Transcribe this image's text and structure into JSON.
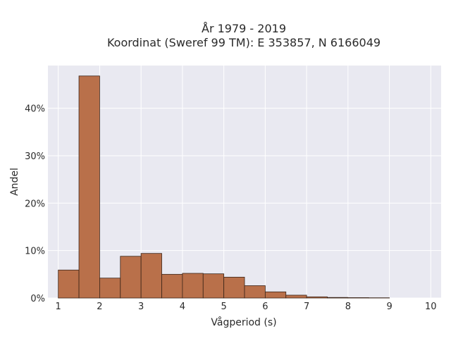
{
  "chart_data": {
    "type": "bar",
    "title_line1": "År 1979 - 2019",
    "title_line2": "Koordinat (Sweref 99 TM): E 353857, N 6166049",
    "xlabel": "Vågperiod (s)",
    "ylabel": "Andel",
    "x_ticks": [
      "1",
      "2",
      "3",
      "4",
      "5",
      "6",
      "7",
      "8",
      "9",
      "10"
    ],
    "y_ticks": [
      "0%",
      "10%",
      "20%",
      "30%",
      "40%"
    ],
    "xlim": [
      0.75,
      10.25
    ],
    "ylim": [
      0,
      49
    ],
    "grid": true,
    "bin_width": 0.5,
    "bins": [
      {
        "x0": 1.0,
        "x1": 1.5,
        "value": 5.9
      },
      {
        "x0": 1.5,
        "x1": 2.0,
        "value": 46.8
      },
      {
        "x0": 2.0,
        "x1": 2.5,
        "value": 4.2
      },
      {
        "x0": 2.5,
        "x1": 3.0,
        "value": 8.8
      },
      {
        "x0": 3.0,
        "x1": 3.5,
        "value": 9.4
      },
      {
        "x0": 3.5,
        "x1": 4.0,
        "value": 5.0
      },
      {
        "x0": 4.0,
        "x1": 4.5,
        "value": 5.2
      },
      {
        "x0": 4.5,
        "x1": 5.0,
        "value": 5.1
      },
      {
        "x0": 5.0,
        "x1": 5.5,
        "value": 4.4
      },
      {
        "x0": 5.5,
        "x1": 6.0,
        "value": 2.6
      },
      {
        "x0": 6.0,
        "x1": 6.5,
        "value": 1.3
      },
      {
        "x0": 6.5,
        "x1": 7.0,
        "value": 0.6
      },
      {
        "x0": 7.0,
        "x1": 7.5,
        "value": 0.25
      },
      {
        "x0": 7.5,
        "x1": 8.0,
        "value": 0.12
      },
      {
        "x0": 8.0,
        "x1": 8.5,
        "value": 0.08
      },
      {
        "x0": 8.5,
        "x1": 9.0,
        "value": 0.05
      }
    ],
    "colors": {
      "bar_fill": "#b9704a",
      "bar_stroke": "#3a2418",
      "plot_bg": "#e9e9f1",
      "grid": "#ffffff"
    }
  }
}
